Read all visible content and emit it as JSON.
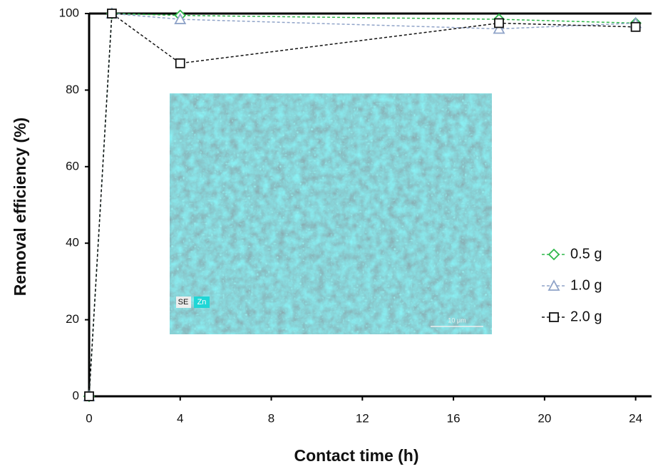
{
  "chart_data": {
    "type": "line",
    "xlabel": "Contact time (h)",
    "ylabel": "Removal efficiency (%)",
    "xlim": [
      0,
      24.7
    ],
    "ylim": [
      0,
      100
    ],
    "xticks": [
      0,
      4,
      8,
      12,
      16,
      20,
      24
    ],
    "yticks": [
      0,
      20,
      40,
      60,
      80,
      100
    ],
    "grid": false,
    "legend": "right",
    "inset_labels": [
      "SE",
      "Zn",
      "10 μm"
    ],
    "x": [
      0,
      1,
      4,
      18,
      24
    ],
    "series": [
      {
        "name": "0.5 g",
        "color": "#2fb84a",
        "marker": "diamond",
        "values": [
          0,
          100,
          99.5,
          98.5,
          97.5
        ]
      },
      {
        "name": "1.0 g",
        "color": "#8fa3c8",
        "marker": "triangle",
        "values": [
          0,
          100,
          98.5,
          96,
          97.5
        ]
      },
      {
        "name": "2.0 g",
        "color": "#111111",
        "marker": "square",
        "values": [
          0,
          100,
          87,
          97.5,
          96.5
        ]
      }
    ]
  }
}
